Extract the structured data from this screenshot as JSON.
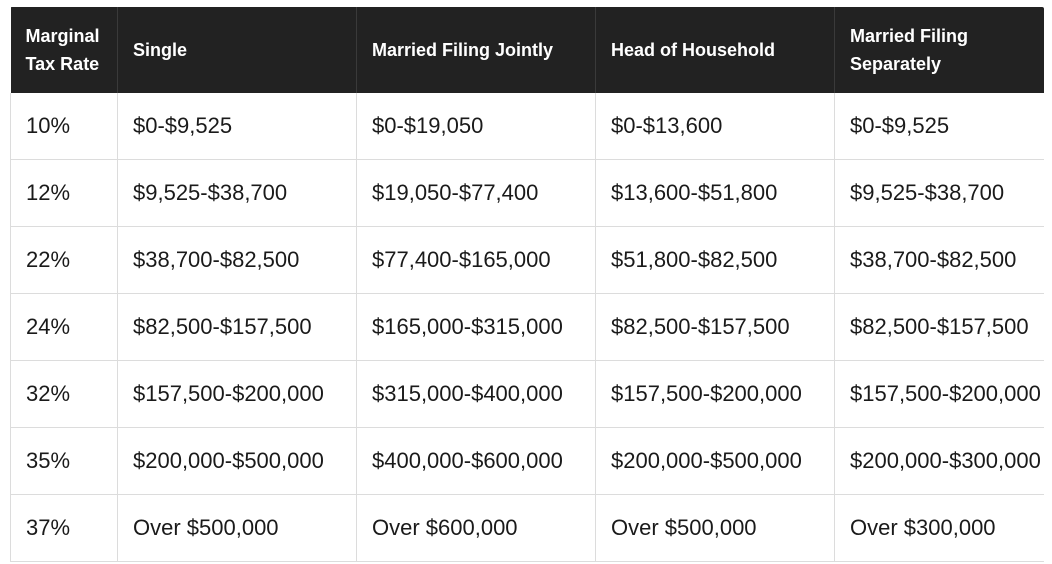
{
  "table": {
    "headers": [
      "Marginal Tax Rate",
      "Single",
      "Married Filing Jointly",
      "Head of Household",
      "Married Filing Separately"
    ],
    "rows": [
      [
        "10%",
        "$0-$9,525",
        "$0-$19,050",
        "$0-$13,600",
        "$0-$9,525"
      ],
      [
        "12%",
        "$9,525-$38,700",
        "$19,050-$77,400",
        "$13,600-$51,800",
        "$9,525-$38,700"
      ],
      [
        "22%",
        "$38,700-$82,500",
        "$77,400-$165,000",
        "$51,800-$82,500",
        "$38,700-$82,500"
      ],
      [
        "24%",
        "$82,500-$157,500",
        "$165,000-$315,000",
        "$82,500-$157,500",
        "$82,500-$157,500"
      ],
      [
        "32%",
        "$157,500-$200,000",
        "$315,000-$400,000",
        "$157,500-$200,000",
        "$157,500-$200,000"
      ],
      [
        "35%",
        "$200,000-$500,000",
        "$400,000-$600,000",
        "$200,000-$500,000",
        "$200,000-$300,000"
      ],
      [
        "37%",
        "Over $500,000",
        "Over $600,000",
        "Over $500,000",
        "Over $300,000"
      ]
    ]
  },
  "colors": {
    "header_bg": "#222222",
    "header_text": "#ffffff",
    "border": "#dcdcdc"
  }
}
